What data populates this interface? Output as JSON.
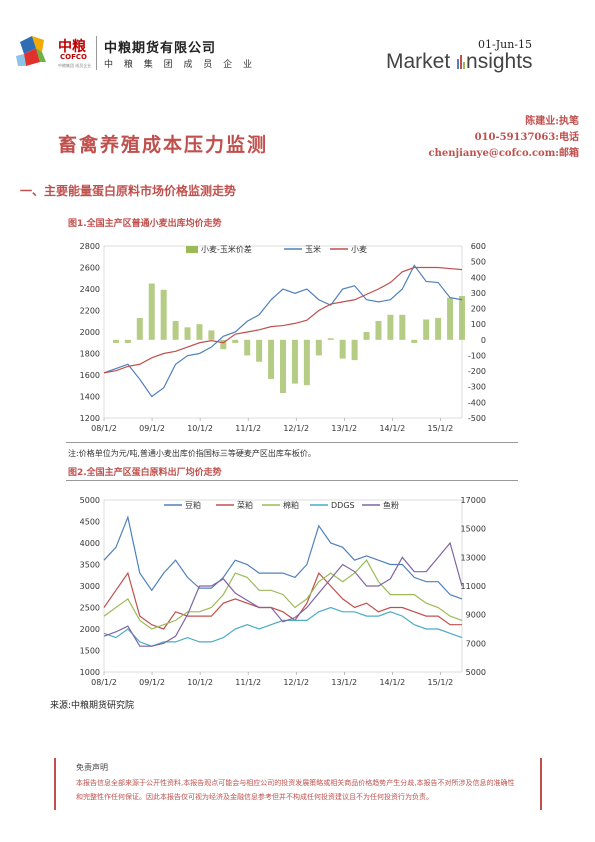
{
  "header": {
    "logo_cn": "中粮",
    "logo_en": "COFCO",
    "logo_tag": "中粮集团 成员企业",
    "company_name": "中粮期货有限公司",
    "company_sub": "中 粮 集 团 成 员 企 业",
    "date": "01-Jun-15",
    "market_insights_left": "Market ",
    "market_insights_right": "nsights"
  },
  "report": {
    "title": "畜禽养殖成本压力监测",
    "author": "陈建业:执笔",
    "phone": "010-59137063:电话",
    "email": "chenjianye@cofco.com:邮箱"
  },
  "section1": {
    "heading": "一、主要能量蛋白原料市场价格监测走势"
  },
  "figure1": {
    "title": "图1.全国主产区普通小麦出库均价走势"
  },
  "figure2": {
    "title": "图2.全国主产区蛋白原料出厂均价走势"
  },
  "note": "注:价格单位为元/吨,普通小麦出库价指国标三等硬麦产区出库车板价。",
  "source": "来源:中粮期货研究院",
  "disclaimer": {
    "title": "免责声明",
    "body": "本报告信息全部来源于公开性资料,本报告观点可能会与相应公司的投资发展策略或相关商品价格趋势产生分歧,本报告不对所涉及信息的准确性和完整性作任何保证。因此本报告仅可视为经济及金融信息参考但并不构成任何投资建议且不为任何投资行为负责。"
  },
  "chart_data": [
    {
      "type": "line",
      "title": "图1.全国主产区普通小麦出库均价走势",
      "x_ticks": [
        "08/1/2",
        "09/1/2",
        "10/1/2",
        "11/1/2",
        "12/1/2",
        "13/1/2",
        "14/1/2",
        "15/1/2"
      ],
      "y_left_ticks": [
        1200,
        1400,
        1600,
        1800,
        2000,
        2200,
        2400,
        2600,
        2800
      ],
      "y_right_ticks": [
        -500,
        -400,
        -300,
        -200,
        -100,
        0,
        100,
        200,
        300,
        400,
        500,
        600
      ],
      "ylim_left": [
        1200,
        2800
      ],
      "ylim_right": [
        -500,
        600
      ],
      "legend_position": "top-right",
      "colors": {
        "spread": "#9bbb59",
        "corn": "#4f81bd",
        "wheat": "#c0504d"
      },
      "x": [
        "2008-01",
        "2008-04",
        "2008-07",
        "2008-10",
        "2009-01",
        "2009-04",
        "2009-07",
        "2009-10",
        "2010-01",
        "2010-04",
        "2010-07",
        "2010-10",
        "2011-01",
        "2011-04",
        "2011-07",
        "2011-10",
        "2012-01",
        "2012-04",
        "2012-07",
        "2012-10",
        "2013-01",
        "2013-04",
        "2013-07",
        "2013-10",
        "2014-01",
        "2014-04",
        "2014-07",
        "2014-10",
        "2015-01",
        "2015-04",
        "2015-06"
      ],
      "series": [
        {
          "name": "小麦",
          "axis": "left",
          "values": [
            1620,
            1640,
            1680,
            1700,
            1760,
            1800,
            1820,
            1860,
            1900,
            1920,
            1900,
            1980,
            2000,
            2020,
            2050,
            2060,
            2080,
            2110,
            2200,
            2260,
            2280,
            2300,
            2350,
            2400,
            2460,
            2560,
            2600,
            2600,
            2600,
            2590,
            2580
          ]
        },
        {
          "name": "玉米",
          "axis": "left",
          "values": [
            1620,
            1660,
            1700,
            1560,
            1400,
            1480,
            1700,
            1780,
            1800,
            1860,
            1960,
            2000,
            2100,
            2160,
            2300,
            2400,
            2360,
            2400,
            2300,
            2250,
            2400,
            2430,
            2300,
            2280,
            2300,
            2400,
            2620,
            2470,
            2460,
            2320,
            2300
          ]
        },
        {
          "name": "小麦-玉米价差",
          "axis": "right",
          "values": [
            0,
            -20,
            -20,
            140,
            360,
            320,
            120,
            80,
            100,
            60,
            -60,
            -20,
            -100,
            -140,
            -250,
            -340,
            -280,
            -290,
            -100,
            10,
            -120,
            -130,
            50,
            120,
            160,
            160,
            -20,
            130,
            140,
            270,
            280
          ]
        }
      ]
    },
    {
      "type": "line",
      "title": "图2.全国主产区蛋白原料出厂均价走势",
      "x_ticks": [
        "08/1/2",
        "09/1/2",
        "10/1/2",
        "11/1/2",
        "12/1/2",
        "13/1/2",
        "14/1/2",
        "15/1/2"
      ],
      "y_left_ticks": [
        1000,
        1500,
        2000,
        2500,
        3000,
        3500,
        4000,
        4500,
        5000
      ],
      "y_right_ticks": [
        5000,
        7000,
        9000,
        11000,
        13000,
        15000,
        17000
      ],
      "ylim_left": [
        1000,
        5000
      ],
      "ylim_right": [
        5000,
        17000
      ],
      "legend_position": "top",
      "colors": {
        "soymeal": "#4f81bd",
        "rapemeal": "#c0504d",
        "cottonmeal": "#9bbb59",
        "ddgs": "#4bacc6",
        "fishmeal": "#8064a2"
      },
      "x": [
        "2008-01",
        "2008-04",
        "2008-07",
        "2008-10",
        "2009-01",
        "2009-04",
        "2009-07",
        "2009-10",
        "2010-01",
        "2010-04",
        "2010-07",
        "2010-10",
        "2011-01",
        "2011-04",
        "2011-07",
        "2011-10",
        "2012-01",
        "2012-04",
        "2012-07",
        "2012-10",
        "2013-01",
        "2013-04",
        "2013-07",
        "2013-10",
        "2014-01",
        "2014-04",
        "2014-07",
        "2014-10",
        "2015-01",
        "2015-04",
        "2015-06"
      ],
      "series": [
        {
          "name": "豆粕",
          "axis": "left",
          "values": [
            3600,
            3900,
            4600,
            3300,
            2900,
            3300,
            3600,
            3200,
            2950,
            2950,
            3200,
            3600,
            3500,
            3300,
            3300,
            3300,
            3200,
            3500,
            4400,
            4000,
            3900,
            3600,
            3700,
            3600,
            3500,
            3500,
            3200,
            3100,
            3100,
            2800,
            2700
          ]
        },
        {
          "name": "菜粕",
          "axis": "left",
          "values": [
            2500,
            2900,
            3300,
            2300,
            2100,
            2000,
            2400,
            2300,
            2300,
            2300,
            2600,
            2700,
            2600,
            2500,
            2500,
            2400,
            2200,
            2600,
            3300,
            3000,
            2700,
            2500,
            2600,
            2400,
            2500,
            2500,
            2400,
            2300,
            2300,
            2100,
            2100
          ]
        },
        {
          "name": "棉粕",
          "axis": "left",
          "values": [
            2300,
            2500,
            2700,
            2200,
            2000,
            2100,
            2200,
            2400,
            2400,
            2500,
            2800,
            3300,
            3200,
            2900,
            2900,
            2800,
            2500,
            2700,
            3100,
            3300,
            3100,
            3300,
            3600,
            3100,
            2800,
            2800,
            2800,
            2600,
            2500,
            2300,
            2200
          ]
        },
        {
          "name": "DDGS",
          "axis": "left",
          "values": [
            1900,
            1800,
            2000,
            1700,
            1600,
            1700,
            1700,
            1800,
            1700,
            1700,
            1800,
            2000,
            2100,
            2000,
            2100,
            2200,
            2200,
            2200,
            2400,
            2500,
            2400,
            2400,
            2300,
            2300,
            2400,
            2300,
            2100,
            2000,
            2000,
            1900,
            1800
          ]
        },
        {
          "name": "鱼粉",
          "axis": "right",
          "values": [
            7500,
            7800,
            8200,
            6800,
            6800,
            7000,
            7500,
            9000,
            11000,
            11000,
            11500,
            10500,
            10000,
            9500,
            9500,
            8500,
            8800,
            9500,
            10500,
            11500,
            12500,
            12000,
            11000,
            11000,
            11500,
            13000,
            12000,
            12000,
            13000,
            14000,
            11000
          ]
        }
      ]
    }
  ]
}
